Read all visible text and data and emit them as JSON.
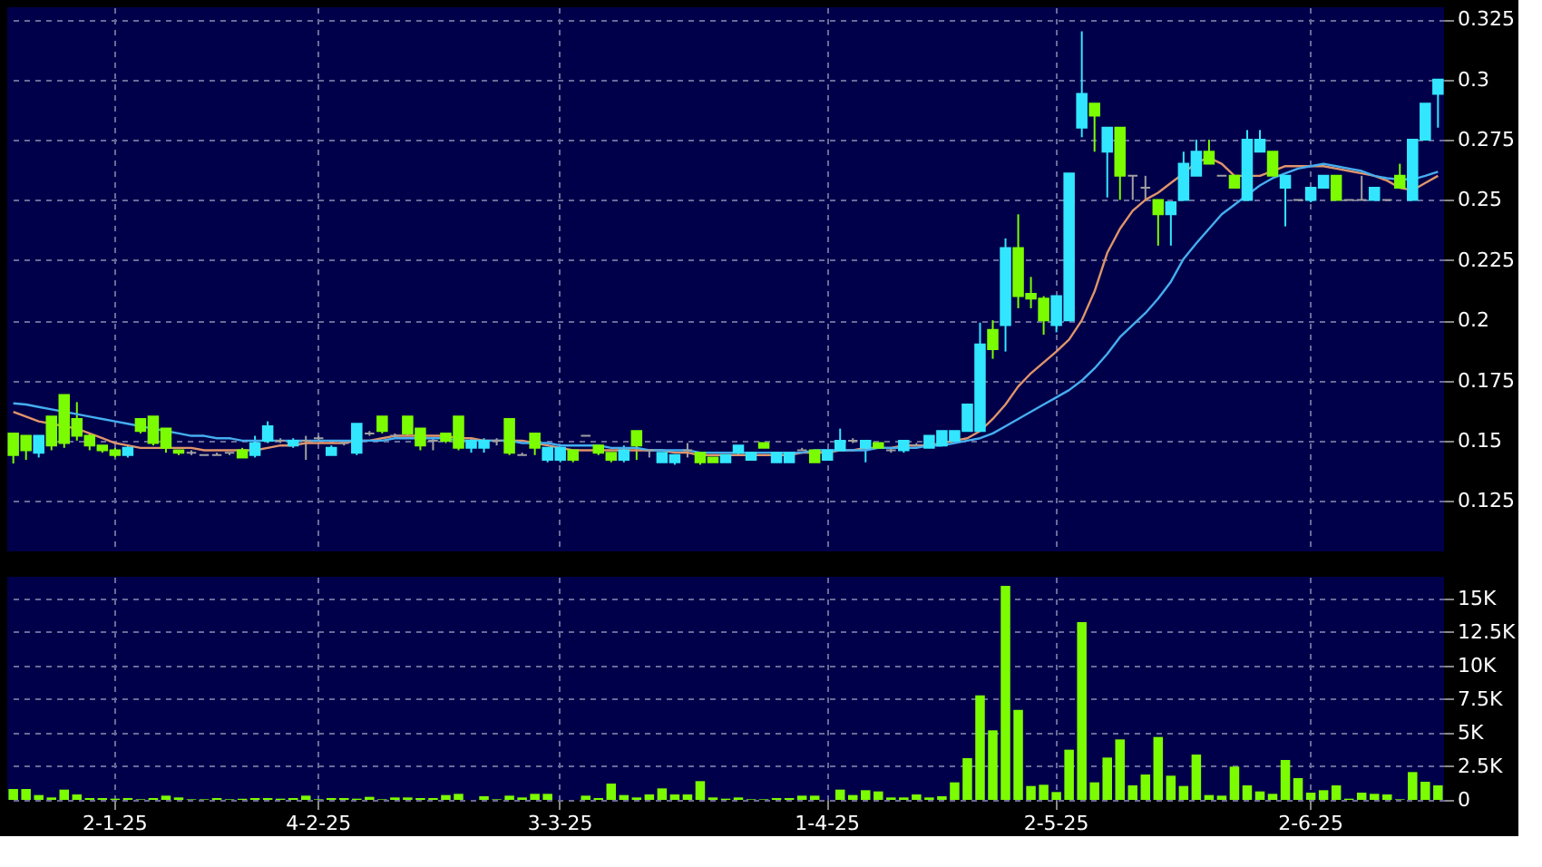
{
  "chart_data": [
    {
      "type": "candlestick",
      "categories": [
        null,
        null,
        null,
        null,
        null,
        null,
        null,
        null,
        null,
        null,
        null,
        null,
        null,
        null,
        null,
        null,
        null,
        null,
        null,
        null,
        null,
        null,
        null,
        null,
        null,
        null,
        null,
        null,
        null,
        null,
        null,
        null,
        null,
        null,
        null,
        null,
        null,
        null,
        null,
        null,
        null,
        null,
        null,
        null,
        null,
        null,
        null,
        null,
        null,
        null,
        null,
        null,
        null,
        null,
        null,
        null,
        null,
        null,
        null,
        null,
        null,
        null,
        null,
        null,
        null,
        null,
        null,
        null,
        null,
        null,
        null,
        null,
        null,
        null,
        null,
        null,
        null,
        null,
        null,
        null,
        null,
        null,
        null,
        null,
        null,
        null,
        null,
        null,
        null,
        null,
        null,
        null,
        null,
        null,
        null,
        null,
        null,
        null,
        null,
        null,
        null,
        null,
        null,
        null,
        null,
        null,
        null,
        null,
        null,
        null,
        null,
        null,
        null
      ],
      "ohlc": [
        [
          0.153,
          0.153,
          0.1405,
          0.144
        ],
        [
          0.152,
          0.152,
          0.142,
          0.146
        ],
        [
          0.145,
          0.152,
          0.143,
          0.152
        ],
        [
          0.16,
          0.16,
          0.146,
          0.148
        ],
        [
          0.169,
          0.169,
          0.147,
          0.149
        ],
        [
          0.159,
          0.166,
          0.15,
          0.152
        ],
        [
          0.152,
          0.153,
          0.146,
          0.148
        ],
        [
          0.148,
          0.148,
          0.145,
          0.146
        ],
        [
          0.146,
          0.147,
          0.143,
          0.144
        ],
        [
          0.144,
          0.148,
          0.143,
          0.147
        ],
        [
          0.159,
          0.159,
          0.153,
          0.154
        ],
        [
          0.16,
          0.16,
          0.148,
          0.149
        ],
        [
          0.155,
          0.155,
          0.145,
          0.147
        ],
        [
          0.146,
          0.146,
          0.144,
          0.145
        ],
        [
          0.145,
          0.146,
          0.144,
          0.145
        ],
        [
          0.144,
          0.144,
          0.144,
          0.144
        ],
        [
          0.144,
          0.145,
          0.144,
          0.144
        ],
        [
          0.145,
          0.145,
          0.144,
          0.145
        ],
        [
          0.146,
          0.147,
          0.143,
          0.143
        ],
        [
          0.144,
          0.152,
          0.143,
          0.149
        ],
        [
          0.15,
          0.158,
          0.149,
          0.156
        ],
        [
          0.15,
          0.151,
          0.149,
          0.15
        ],
        [
          0.148,
          0.151,
          0.147,
          0.15
        ],
        [
          0.15,
          0.152,
          0.142,
          0.15
        ],
        [
          0.151,
          0.152,
          0.15,
          0.151
        ],
        [
          0.144,
          0.148,
          0.144,
          0.147
        ],
        [
          0.149,
          0.15,
          0.148,
          0.149
        ],
        [
          0.145,
          0.157,
          0.144,
          0.157
        ],
        [
          0.153,
          0.154,
          0.152,
          0.153
        ],
        [
          0.16,
          0.16,
          0.153,
          0.154
        ],
        [
          0.152,
          0.153,
          0.151,
          0.152
        ],
        [
          0.16,
          0.16,
          0.152,
          0.153
        ],
        [
          0.155,
          0.155,
          0.146,
          0.148
        ],
        [
          0.15,
          0.151,
          0.146,
          0.15
        ],
        [
          0.153,
          0.153,
          0.149,
          0.15
        ],
        [
          0.16,
          0.16,
          0.146,
          0.147
        ],
        [
          0.147,
          0.151,
          0.145,
          0.15
        ],
        [
          0.147,
          0.151,
          0.145,
          0.15
        ],
        [
          0.15,
          0.151,
          0.148,
          0.15
        ],
        [
          0.159,
          0.159,
          0.144,
          0.145
        ],
        [
          0.144,
          0.145,
          0.144,
          0.144
        ],
        [
          0.153,
          0.153,
          0.144,
          0.147
        ],
        [
          0.142,
          0.147,
          0.141,
          0.147
        ],
        [
          0.142,
          0.147,
          0.141,
          0.147
        ],
        [
          0.146,
          0.146,
          0.141,
          0.142
        ],
        [
          0.152,
          0.152,
          0.152,
          0.152
        ],
        [
          0.148,
          0.148,
          0.144,
          0.145
        ],
        [
          0.145,
          0.145,
          0.141,
          0.142
        ],
        [
          0.142,
          0.148,
          0.141,
          0.146
        ],
        [
          0.154,
          0.154,
          0.142,
          0.148
        ],
        [
          0.146,
          0.146,
          0.143,
          0.146
        ],
        [
          0.141,
          0.145,
          0.141,
          0.145
        ],
        [
          0.141,
          0.144,
          0.14,
          0.144
        ],
        [
          0.146,
          0.149,
          0.143,
          0.146
        ],
        [
          0.145,
          0.145,
          0.14,
          0.141
        ],
        [
          0.143,
          0.143,
          0.141,
          0.141
        ],
        [
          0.141,
          0.144,
          0.141,
          0.144
        ],
        [
          0.145,
          0.148,
          0.144,
          0.148
        ],
        [
          0.142,
          0.145,
          0.142,
          0.145
        ],
        [
          0.149,
          0.149,
          0.147,
          0.147
        ],
        [
          0.141,
          0.145,
          0.141,
          0.145
        ],
        [
          0.141,
          0.145,
          0.141,
          0.145
        ],
        [
          0.146,
          0.147,
          0.146,
          0.146
        ],
        [
          0.146,
          0.146,
          0.141,
          0.141
        ],
        [
          0.142,
          0.146,
          0.142,
          0.146
        ],
        [
          0.146,
          0.155,
          0.146,
          0.15
        ],
        [
          0.15,
          0.151,
          0.149,
          0.15
        ],
        [
          0.147,
          0.15,
          0.141,
          0.15
        ],
        [
          0.149,
          0.149,
          0.147,
          0.147
        ],
        [
          0.146,
          0.147,
          0.145,
          0.146
        ],
        [
          0.146,
          0.15,
          0.145,
          0.15
        ],
        [
          0.148,
          0.149,
          0.148,
          0.148
        ],
        [
          0.147,
          0.152,
          0.147,
          0.152
        ],
        [
          0.148,
          0.154,
          0.148,
          0.154
        ],
        [
          0.15,
          0.154,
          0.15,
          0.154
        ],
        [
          0.154,
          0.165,
          0.154,
          0.165
        ],
        [
          0.154,
          0.199,
          0.154,
          0.19
        ],
        [
          0.196,
          0.2,
          0.184,
          0.188
        ],
        [
          0.198,
          0.234,
          0.187,
          0.23
        ],
        [
          0.23,
          0.244,
          0.205,
          0.21
        ],
        [
          0.211,
          0.218,
          0.205,
          0.209
        ],
        [
          0.209,
          0.21,
          0.194,
          0.2
        ],
        [
          0.198,
          0.21,
          0.195,
          0.21
        ],
        [
          0.2,
          0.261,
          0.2,
          0.261
        ],
        [
          0.28,
          0.32,
          0.276,
          0.294
        ],
        [
          0.29,
          0.29,
          0.27,
          0.285
        ],
        [
          0.27,
          0.28,
          0.251,
          0.28
        ],
        [
          0.28,
          0.28,
          0.25,
          0.26
        ],
        [
          0.26,
          0.26,
          0.25,
          0.26
        ],
        [
          0.255,
          0.26,
          0.25,
          0.255
        ],
        [
          0.25,
          0.25,
          0.231,
          0.244
        ],
        [
          0.244,
          0.249,
          0.231,
          0.249
        ],
        [
          0.25,
          0.27,
          0.25,
          0.265
        ],
        [
          0.26,
          0.275,
          0.26,
          0.27
        ],
        [
          0.27,
          0.275,
          0.265,
          0.265
        ],
        [
          0.26,
          0.26,
          0.26,
          0.26
        ],
        [
          0.26,
          0.26,
          0.255,
          0.255
        ],
        [
          0.25,
          0.279,
          0.25,
          0.275
        ],
        [
          0.27,
          0.279,
          0.27,
          0.275
        ],
        [
          0.27,
          0.27,
          0.26,
          0.26
        ],
        [
          0.255,
          0.26,
          0.239,
          0.26
        ],
        [
          0.25,
          0.25,
          0.25,
          0.25
        ],
        [
          0.25,
          0.255,
          0.249,
          0.255
        ],
        [
          0.255,
          0.26,
          0.255,
          0.26
        ],
        [
          0.26,
          0.26,
          0.25,
          0.25
        ],
        [
          0.25,
          0.25,
          0.25,
          0.25
        ],
        [
          0.25,
          0.26,
          0.25,
          0.25
        ],
        [
          0.25,
          0.255,
          0.25,
          0.255
        ],
        [
          0.25,
          0.25,
          0.25,
          0.25
        ],
        [
          0.26,
          0.265,
          0.255,
          0.255
        ],
        [
          0.25,
          0.275,
          0.25,
          0.275
        ],
        [
          0.275,
          0.29,
          0.275,
          0.29
        ],
        [
          0.294,
          0.3,
          0.28,
          0.3
        ]
      ],
      "colors": [
        "#7cfc00",
        "#7cfc00",
        "#33e6ff",
        "#7cfc00",
        "#7cfc00",
        "#7cfc00",
        "#7cfc00",
        "#7cfc00",
        "#7cfc00",
        "#33e6ff",
        "#7cfc00",
        "#7cfc00",
        "#7cfc00",
        "#7cfc00",
        "#a0a0a0",
        "#a0a0a0",
        "#a0a0a0",
        "#a0a0a0",
        "#7cfc00",
        "#33e6ff",
        "#33e6ff",
        "#a0a0a0",
        "#33e6ff",
        "#a0a0a0",
        "#a0a0a0",
        "#33e6ff",
        "#a0a0a0",
        "#33e6ff",
        "#a0a0a0",
        "#7cfc00",
        "#a0a0a0",
        "#7cfc00",
        "#7cfc00",
        "#a0a0a0",
        "#7cfc00",
        "#7cfc00",
        "#33e6ff",
        "#33e6ff",
        "#a0a0a0",
        "#7cfc00",
        "#a0a0a0",
        "#7cfc00",
        "#33e6ff",
        "#33e6ff",
        "#7cfc00",
        "#a0a0a0",
        "#7cfc00",
        "#7cfc00",
        "#33e6ff",
        "#7cfc00",
        "#a0a0a0",
        "#33e6ff",
        "#33e6ff",
        "#a0a0a0",
        "#7cfc00",
        "#7cfc00",
        "#33e6ff",
        "#33e6ff",
        "#33e6ff",
        "#7cfc00",
        "#33e6ff",
        "#33e6ff",
        "#a0a0a0",
        "#7cfc00",
        "#33e6ff",
        "#33e6ff",
        "#a0a0a0",
        "#33e6ff",
        "#7cfc00",
        "#a0a0a0",
        "#33e6ff",
        "#a0a0a0",
        "#33e6ff",
        "#33e6ff",
        "#33e6ff",
        "#33e6ff",
        "#33e6ff",
        "#7cfc00",
        "#33e6ff",
        "#7cfc00",
        "#7cfc00",
        "#7cfc00",
        "#33e6ff",
        "#33e6ff",
        "#33e6ff",
        "#7cfc00",
        "#33e6ff",
        "#7cfc00",
        "#a0a0a0",
        "#a0a0a0",
        "#7cfc00",
        "#33e6ff",
        "#33e6ff",
        "#33e6ff",
        "#7cfc00",
        "#a0a0a0",
        "#7cfc00",
        "#33e6ff",
        "#33e6ff",
        "#7cfc00",
        "#33e6ff",
        "#a0a0a0",
        "#33e6ff",
        "#33e6ff",
        "#7cfc00",
        "#a0a0a0",
        "#a0a0a0",
        "#33e6ff",
        "#a0a0a0",
        "#7cfc00",
        "#33e6ff",
        "#33e6ff",
        "#33e6ff"
      ],
      "series": [
        {
          "type": "line",
          "color": "#e0956a",
          "values": [
            0.162,
            0.16,
            0.158,
            0.157,
            0.156,
            0.155,
            0.153,
            0.151,
            0.149,
            0.148,
            0.147,
            0.147,
            0.147,
            0.147,
            0.147,
            0.146,
            0.146,
            0.146,
            0.146,
            0.146,
            0.147,
            0.148,
            0.148,
            0.149,
            0.149,
            0.149,
            0.149,
            0.15,
            0.15,
            0.151,
            0.152,
            0.152,
            0.152,
            0.152,
            0.152,
            0.151,
            0.151,
            0.15,
            0.15,
            0.15,
            0.15,
            0.149,
            0.148,
            0.147,
            0.146,
            0.146,
            0.146,
            0.146,
            0.146,
            0.146,
            0.146,
            0.146,
            0.145,
            0.145,
            0.144,
            0.144,
            0.144,
            0.144,
            0.144,
            0.144,
            0.144,
            0.144,
            0.145,
            0.145,
            0.145,
            0.146,
            0.146,
            0.147,
            0.147,
            0.147,
            0.148,
            0.148,
            0.148,
            0.149,
            0.15,
            0.151,
            0.154,
            0.159,
            0.165,
            0.1725,
            0.178,
            0.1825,
            0.187,
            0.192,
            0.2,
            0.212,
            0.228,
            0.238,
            0.2455,
            0.25,
            0.253,
            0.257,
            0.261,
            0.2655,
            0.2675,
            0.265,
            0.26,
            0.26,
            0.26,
            0.262,
            0.264,
            0.264,
            0.264,
            0.264,
            0.263,
            0.262,
            0.261,
            0.26,
            0.258,
            0.255,
            0.254,
            0.257,
            0.26
          ]
        },
        {
          "type": "line",
          "color": "#45aef0",
          "values": [
            0.1655,
            0.165,
            0.164,
            0.163,
            0.162,
            0.161,
            0.16,
            0.159,
            0.158,
            0.157,
            0.156,
            0.155,
            0.154,
            0.153,
            0.152,
            0.152,
            0.151,
            0.151,
            0.15,
            0.15,
            0.15,
            0.15,
            0.15,
            0.15,
            0.15,
            0.15,
            0.15,
            0.15,
            0.15,
            0.15,
            0.151,
            0.151,
            0.151,
            0.151,
            0.151,
            0.15,
            0.15,
            0.15,
            0.15,
            0.15,
            0.149,
            0.149,
            0.149,
            0.148,
            0.148,
            0.148,
            0.148,
            0.147,
            0.147,
            0.147,
            0.146,
            0.146,
            0.146,
            0.146,
            0.145,
            0.145,
            0.145,
            0.145,
            0.145,
            0.145,
            0.145,
            0.145,
            0.145,
            0.146,
            0.146,
            0.146,
            0.146,
            0.146,
            0.147,
            0.147,
            0.147,
            0.147,
            0.148,
            0.148,
            0.149,
            0.15,
            0.151,
            0.153,
            0.156,
            0.159,
            0.162,
            0.165,
            0.168,
            0.171,
            0.175,
            0.18,
            0.186,
            0.193,
            0.198,
            0.203,
            0.209,
            0.216,
            0.2255,
            0.232,
            0.238,
            0.244,
            0.248,
            0.252,
            0.256,
            0.259,
            0.261,
            0.263,
            0.264,
            0.265,
            0.264,
            0.263,
            0.262,
            0.26,
            0.259,
            0.2585,
            0.2585,
            0.26,
            0.2617
          ]
        }
      ],
      "ylim": [
        0.104,
        0.33
      ],
      "yticks": [
        0.125,
        0.15,
        0.175,
        0.2,
        0.225,
        0.25,
        0.275,
        0.3,
        0.325
      ],
      "grid": true,
      "tick_labels": "y"
    },
    {
      "type": "bar",
      "categories": [
        null,
        null,
        null,
        null,
        null,
        null,
        null,
        null,
        "2-1-25",
        null,
        null,
        null,
        null,
        null,
        null,
        null,
        null,
        null,
        null,
        null,
        null,
        null,
        null,
        null,
        "4-2-25",
        null,
        null,
        null,
        null,
        null,
        null,
        null,
        null,
        null,
        null,
        null,
        null,
        null,
        null,
        null,
        null,
        null,
        null,
        "3-3-25",
        null,
        null,
        null,
        null,
        null,
        null,
        null,
        null,
        null,
        null,
        null,
        null,
        null,
        null,
        null,
        null,
        null,
        null,
        null,
        null,
        "1-4-25",
        null,
        null,
        null,
        null,
        null,
        null,
        null,
        null,
        null,
        null,
        null,
        null,
        null,
        null,
        null,
        null,
        null,
        "2-5-25",
        null,
        null,
        null,
        null,
        null,
        null,
        null,
        null,
        null,
        null,
        null,
        null,
        null,
        null,
        null,
        null,
        null,
        null,
        null,
        "2-6-25",
        null,
        null,
        null,
        null,
        null,
        null,
        null,
        null,
        null,
        null
      ],
      "values": [
        810,
        810,
        360,
        180,
        765,
        405,
        135,
        135,
        90,
        135,
        45,
        135,
        315,
        180,
        45,
        45,
        135,
        45,
        90,
        135,
        135,
        90,
        135,
        315,
        45,
        135,
        135,
        90,
        225,
        45,
        180,
        180,
        135,
        135,
        360,
        450,
        null,
        270,
        45,
        315,
        180,
        450,
        450,
        null,
        null,
        315,
        135,
        1215,
        360,
        180,
        405,
        855,
        405,
        405,
        1395,
        180,
        90,
        180,
        45,
        45,
        135,
        135,
        315,
        315,
        null,
        765,
        360,
        720,
        630,
        180,
        180,
        405,
        180,
        270,
        1305,
        3105,
        7785,
        5175,
        15930,
        6705,
        1035,
        1125,
        585,
        3735,
        13230,
        1305,
        3150,
        4500,
        1080,
        1890,
        4680,
        1800,
        1035,
        3375,
        360,
        315,
        2475,
        1080,
        630,
        450,
        2970,
        1620,
        540,
        720,
        1080,
        90,
        540,
        450,
        405,
        45,
        2070,
        1350,
        1080
      ],
      "color": "#7cfc00",
      "ylim": [
        0,
        16600
      ],
      "yticks": [
        0,
        {
          "value": 2500,
          "label": "2.5K"
        },
        {
          "value": 5000,
          "label": "5K"
        },
        {
          "value": 7500,
          "label": "7.5K"
        },
        {
          "value": 10000,
          "label": "10K"
        },
        {
          "value": 12500,
          "label": "12.5K"
        },
        {
          "value": 15000,
          "label": "15K"
        }
      ],
      "grid": true
    }
  ]
}
